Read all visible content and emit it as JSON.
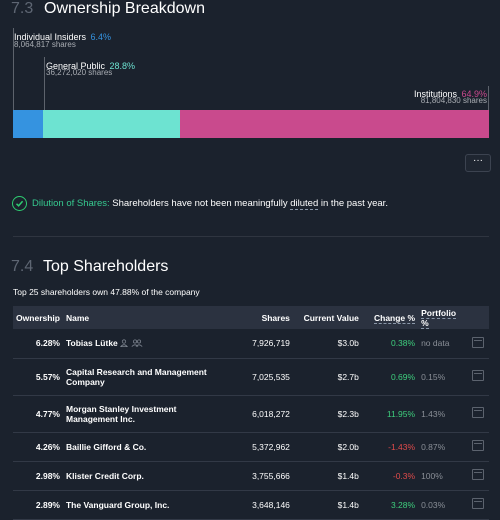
{
  "section1": {
    "number": "7.3",
    "title": "Ownership Breakdown"
  },
  "ownership": {
    "insiders": {
      "label": "Individual Insiders",
      "pct": "6.4%",
      "shares": "8,064,817 shares",
      "color": "#3593e0",
      "value": 6.4
    },
    "public": {
      "label": "General Public",
      "pct": "28.8%",
      "shares": "36,272,020 shares",
      "color": "#6de3d1",
      "value": 28.8
    },
    "institutions": {
      "label": "Institutions",
      "pct": "64.9%",
      "shares": "81,804,830 shares",
      "color": "#c94a8d",
      "value": 64.9
    }
  },
  "more_label": "···",
  "dilution": {
    "title": "Dilution of Shares:",
    "text_before": "Shareholders have not been meaningfully",
    "link": "diluted",
    "text_after": "in the past year."
  },
  "section2": {
    "number": "7.4",
    "title": "Top Shareholders"
  },
  "summary": "Top 25 shareholders own 47.88% of the company",
  "table": {
    "headers": {
      "ownership": "Ownership",
      "name": "Name",
      "shares": "Shares",
      "value": "Current Value",
      "change": "Change %",
      "portfolio": "Portfolio %"
    },
    "rows": [
      {
        "ownership": "6.28%",
        "name": "Tobias Lütke",
        "shares": "7,926,719",
        "value": "$3.0b",
        "change": "0.38%",
        "portfolio": "no data"
      },
      {
        "ownership": "5.57%",
        "name": "Capital Research and Management Company",
        "shares": "7,025,535",
        "value": "$2.7b",
        "change": "0.69%",
        "portfolio": "0.15%"
      },
      {
        "ownership": "4.77%",
        "name": "Morgan Stanley Investment Management Inc.",
        "shares": "6,018,272",
        "value": "$2.3b",
        "change": "11.95%",
        "portfolio": "1.43%"
      },
      {
        "ownership": "4.26%",
        "name": "Baillie Gifford & Co.",
        "shares": "5,372,962",
        "value": "$2.0b",
        "change": "-1.43%",
        "portfolio": "0.87%"
      },
      {
        "ownership": "2.98%",
        "name": "Klister Credit Corp.",
        "shares": "3,755,666",
        "value": "$1.4b",
        "change": "-0.3%",
        "portfolio": "100%"
      },
      {
        "ownership": "2.89%",
        "name": "The Vanguard Group, Inc.",
        "shares": "3,648,146",
        "value": "$1.4b",
        "change": "3.28%",
        "portfolio": "0.03%"
      }
    ]
  }
}
